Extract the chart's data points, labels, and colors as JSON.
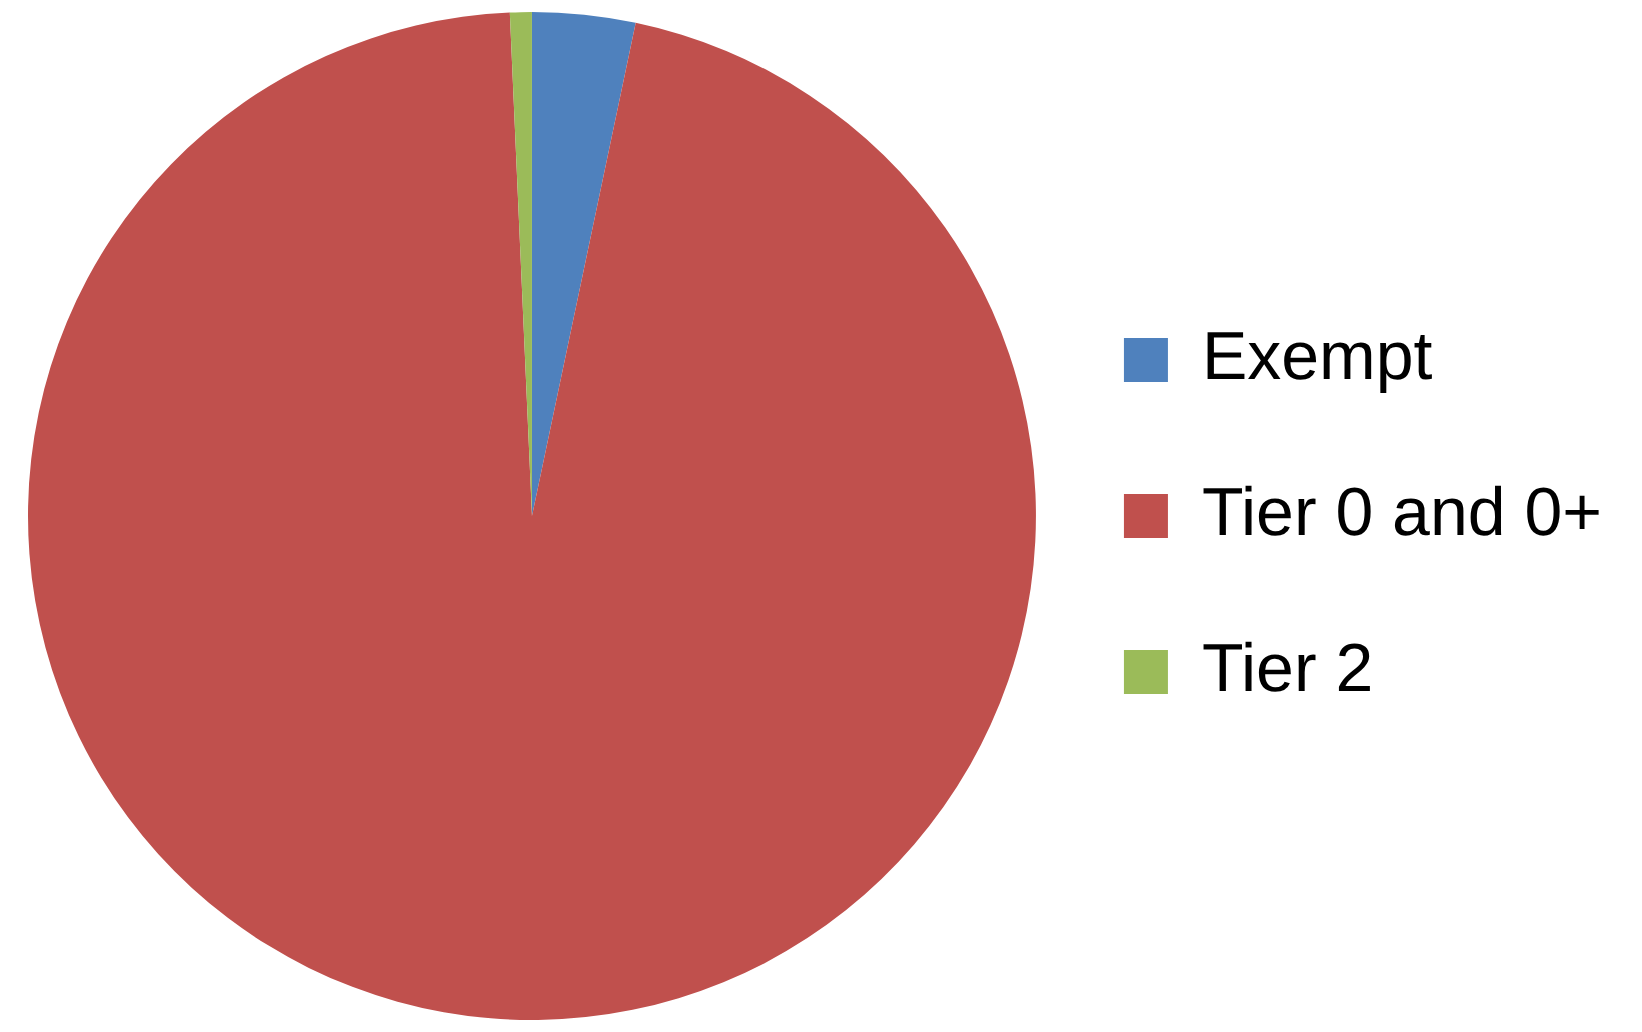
{
  "chart_data": {
    "type": "pie",
    "categories": [
      "Exempt",
      "Tier 0 and 0+",
      "Tier 2"
    ],
    "values": [
      3.3,
      96,
      0.7
    ],
    "colors": [
      "#4f81bd",
      "#c0504d",
      "#9bbb59"
    ],
    "legend": "right"
  }
}
